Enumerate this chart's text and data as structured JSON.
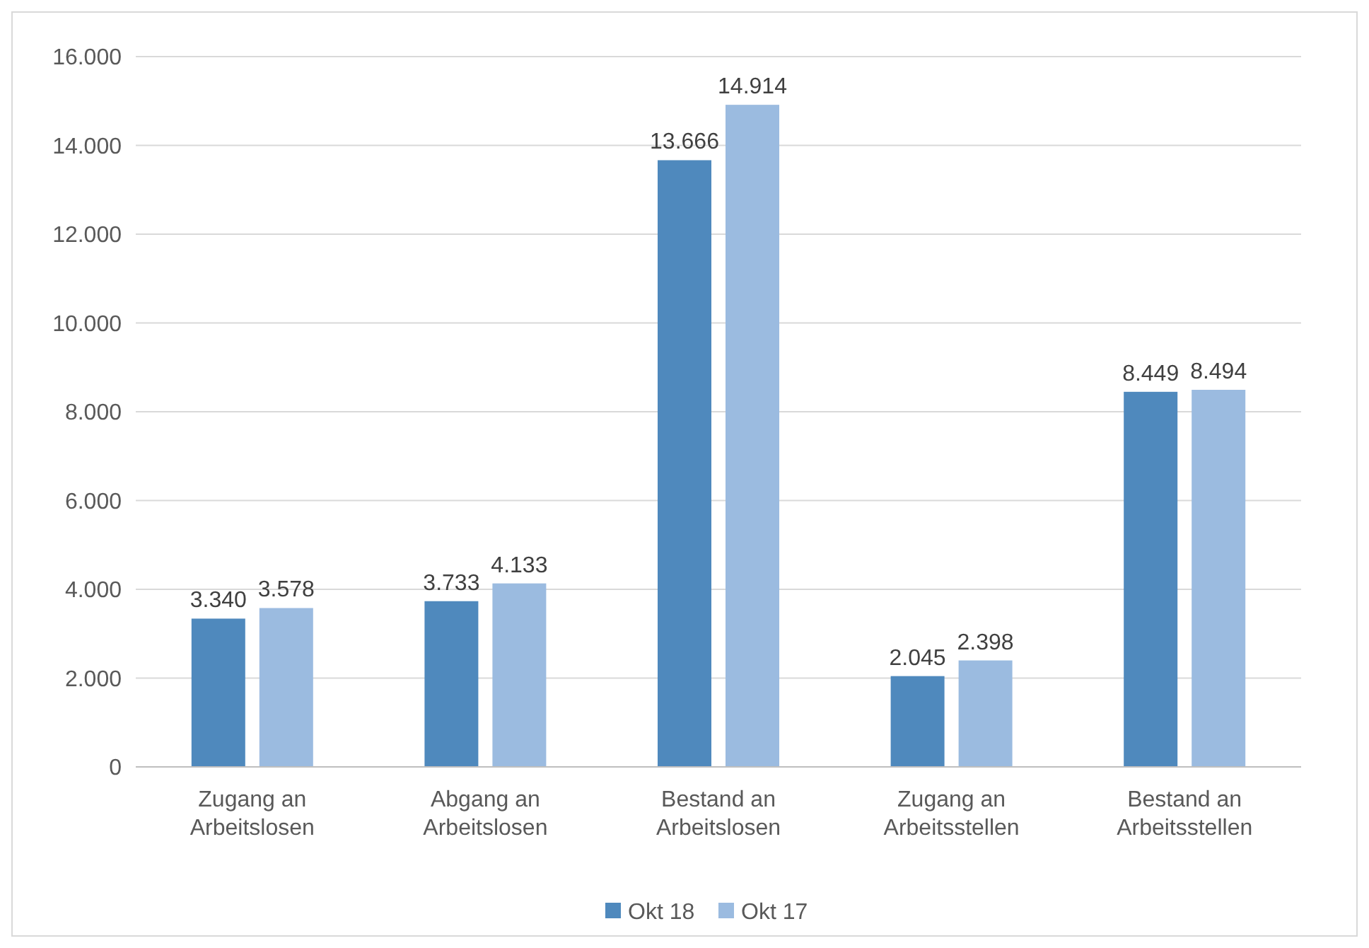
{
  "chart_data": {
    "type": "bar",
    "categories": [
      "Zugang an\nArbeitslosen",
      "Abgang an\nArbeitslosen",
      "Bestand an\nArbeitslosen",
      "Zugang an\nArbeitsstellen",
      "Bestand an\nArbeitsstellen"
    ],
    "series": [
      {
        "name": "Okt 18",
        "color": "#4f89bd",
        "values": [
          3340,
          3733,
          13666,
          2045,
          8449
        ],
        "value_labels": [
          "3.340",
          "3.733",
          "13.666",
          "2.045",
          "8.449"
        ]
      },
      {
        "name": "Okt 17",
        "color": "#9bbbe0",
        "values": [
          3578,
          4133,
          14914,
          2398,
          8494
        ],
        "value_labels": [
          "3.578",
          "4.133",
          "14.914",
          "2.398",
          "8.494"
        ]
      }
    ],
    "ylim": [
      0,
      16000
    ],
    "yticks": [
      {
        "value": 0,
        "label": "0"
      },
      {
        "value": 2000,
        "label": "2.000"
      },
      {
        "value": 4000,
        "label": "4.000"
      },
      {
        "value": 6000,
        "label": "6.000"
      },
      {
        "value": 8000,
        "label": "8.000"
      },
      {
        "value": 10000,
        "label": "10.000"
      },
      {
        "value": 12000,
        "label": "12.000"
      },
      {
        "value": 14000,
        "label": "14.000"
      },
      {
        "value": 16000,
        "label": "16.000"
      }
    ],
    "grid": "y",
    "legend": "bottom"
  }
}
